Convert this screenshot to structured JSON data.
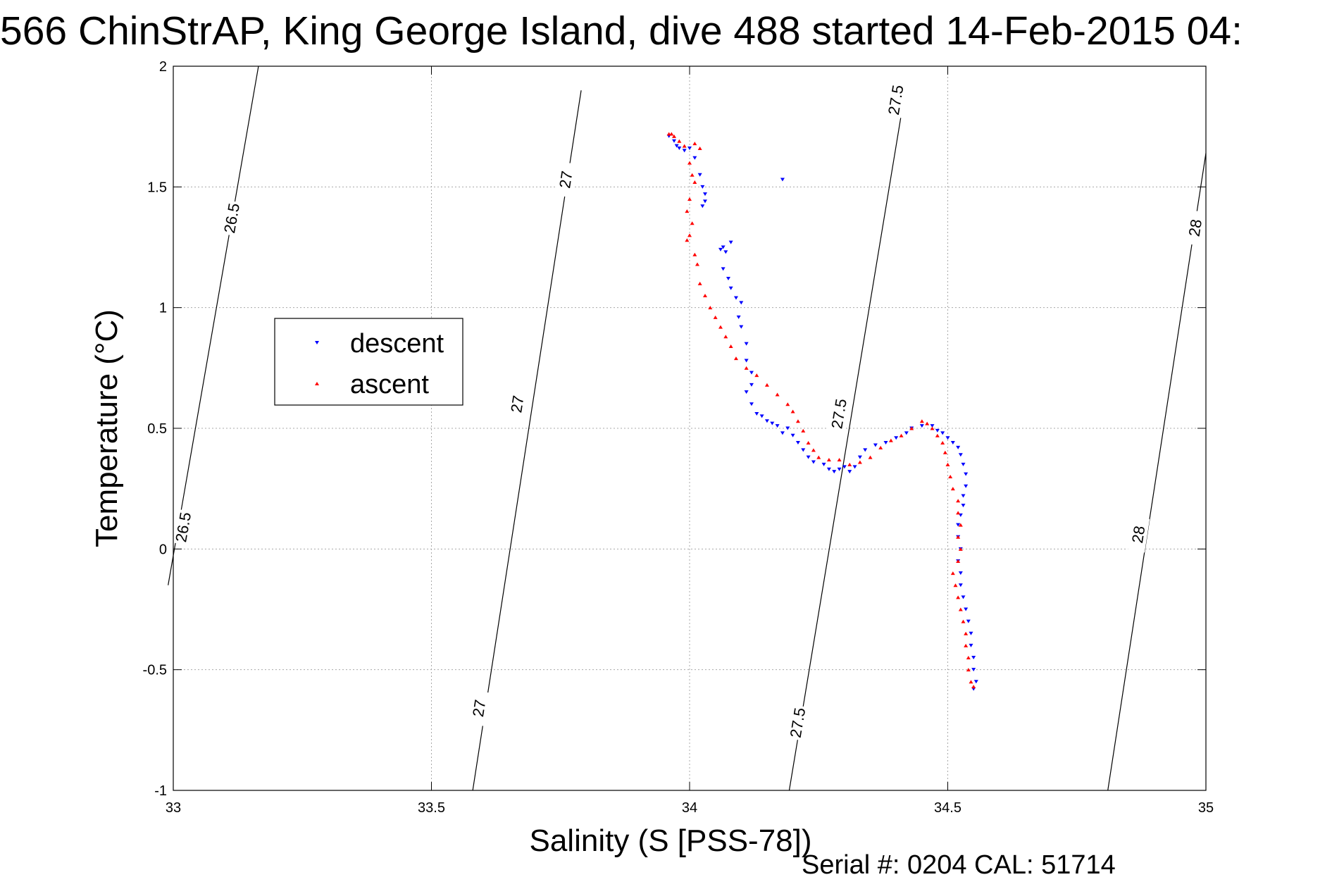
{
  "chart_data": {
    "type": "scatter",
    "title": "566 ChinStrAP, King George Island, dive 488 started 14-Feb-2015 04:",
    "xlabel": "Salinity (S [PSS-78])",
    "ylabel": "Temperature (°C)",
    "xlim": [
      33,
      35
    ],
    "ylim": [
      -1,
      2
    ],
    "xticks": [
      "33",
      "33.5",
      "34",
      "34.5",
      "35"
    ],
    "yticks": [
      "2",
      "1.5",
      "1",
      "0.5",
      "0",
      "-0.5",
      "-1"
    ],
    "grid": true,
    "legend": {
      "location": "upper-left",
      "entries": [
        "descent",
        "ascent"
      ]
    },
    "footer": "Serial #: 0204  CAL: 51714",
    "colors": {
      "descent": "#0000ff",
      "ascent": "#ff0000",
      "contour": "#000000",
      "grid": "#a8a8a8"
    },
    "density_contours": [
      {
        "label": "26.5",
        "line": [
          [
            32.99,
            -0.15
          ],
          [
            33.165,
            2.0
          ]
        ],
        "labels_at": [
          [
            33.114,
            1.37
          ],
          [
            33.02,
            0.09
          ]
        ]
      },
      {
        "label": "27",
        "line": [
          [
            33.58,
            -1.0
          ],
          [
            33.79,
            1.9
          ]
        ],
        "labels_at": [
          [
            33.761,
            1.53
          ],
          [
            33.667,
            0.6
          ],
          [
            33.593,
            -0.66
          ]
        ]
      },
      {
        "label": "27.5",
        "line": [
          [
            34.193,
            -1.0
          ],
          [
            34.41,
            1.8
          ]
        ],
        "labels_at": [
          [
            34.4,
            1.86
          ],
          [
            34.29,
            0.56
          ],
          [
            34.21,
            -0.72
          ]
        ]
      },
      {
        "label": "28",
        "line": [
          [
            34.81,
            -1.0
          ],
          [
            35.0,
            1.64
          ]
        ],
        "labels_at": [
          [
            34.98,
            1.33
          ],
          [
            34.87,
            0.06
          ]
        ]
      }
    ],
    "series": [
      {
        "name": "descent",
        "marker": "triangle-down",
        "points": [
          [
            33.96,
            1.71
          ],
          [
            33.97,
            1.69
          ],
          [
            33.975,
            1.67
          ],
          [
            33.98,
            1.66
          ],
          [
            33.99,
            1.65
          ],
          [
            34.0,
            1.66
          ],
          [
            34.01,
            1.62
          ],
          [
            34.02,
            1.55
          ],
          [
            34.025,
            1.5
          ],
          [
            34.03,
            1.47
          ],
          [
            34.03,
            1.44
          ],
          [
            34.025,
            1.42
          ],
          [
            34.06,
            1.24
          ],
          [
            34.065,
            1.25
          ],
          [
            34.07,
            1.23
          ],
          [
            34.08,
            1.27
          ],
          [
            34.065,
            1.16
          ],
          [
            34.075,
            1.12
          ],
          [
            34.08,
            1.08
          ],
          [
            34.09,
            1.04
          ],
          [
            34.1,
            1.02
          ],
          [
            34.095,
            0.96
          ],
          [
            34.1,
            0.92
          ],
          [
            34.11,
            0.85
          ],
          [
            34.11,
            0.78
          ],
          [
            34.12,
            0.73
          ],
          [
            34.12,
            0.68
          ],
          [
            34.11,
            0.65
          ],
          [
            34.12,
            0.6
          ],
          [
            34.13,
            0.56
          ],
          [
            34.14,
            0.55
          ],
          [
            34.15,
            0.53
          ],
          [
            34.16,
            0.52
          ],
          [
            34.17,
            0.51
          ],
          [
            34.18,
            0.48
          ],
          [
            34.19,
            0.5
          ],
          [
            34.2,
            0.47
          ],
          [
            34.21,
            0.44
          ],
          [
            34.22,
            0.41
          ],
          [
            34.23,
            0.38
          ],
          [
            34.24,
            0.36
          ],
          [
            34.26,
            0.35
          ],
          [
            34.27,
            0.33
          ],
          [
            34.28,
            0.32
          ],
          [
            34.29,
            0.33
          ],
          [
            34.3,
            0.34
          ],
          [
            34.31,
            0.32
          ],
          [
            34.32,
            0.34
          ],
          [
            34.33,
            0.38
          ],
          [
            34.34,
            0.41
          ],
          [
            34.36,
            0.43
          ],
          [
            34.38,
            0.44
          ],
          [
            34.4,
            0.46
          ],
          [
            34.42,
            0.48
          ],
          [
            34.43,
            0.5
          ],
          [
            34.45,
            0.51
          ],
          [
            34.47,
            0.51
          ],
          [
            34.48,
            0.49
          ],
          [
            34.49,
            0.48
          ],
          [
            34.5,
            0.46
          ],
          [
            34.51,
            0.44
          ],
          [
            34.52,
            0.42
          ],
          [
            34.525,
            0.39
          ],
          [
            34.53,
            0.35
          ],
          [
            34.535,
            0.31
          ],
          [
            34.535,
            0.26
          ],
          [
            34.53,
            0.22
          ],
          [
            34.53,
            0.18
          ],
          [
            34.525,
            0.14
          ],
          [
            34.52,
            0.1
          ],
          [
            34.52,
            0.05
          ],
          [
            34.525,
            0.0
          ],
          [
            34.52,
            -0.05
          ],
          [
            34.525,
            -0.1
          ],
          [
            34.525,
            -0.15
          ],
          [
            34.53,
            -0.2
          ],
          [
            34.535,
            -0.25
          ],
          [
            34.54,
            -0.3
          ],
          [
            34.545,
            -0.35
          ],
          [
            34.545,
            -0.4
          ],
          [
            34.55,
            -0.45
          ],
          [
            34.55,
            -0.5
          ],
          [
            34.555,
            -0.55
          ],
          [
            34.55,
            -0.58
          ],
          [
            34.18,
            1.53
          ]
        ]
      },
      {
        "name": "ascent",
        "marker": "triangle-up",
        "points": [
          [
            33.96,
            1.72
          ],
          [
            33.965,
            1.72
          ],
          [
            33.97,
            1.71
          ],
          [
            33.98,
            1.69
          ],
          [
            33.99,
            1.67
          ],
          [
            34.01,
            1.68
          ],
          [
            34.02,
            1.66
          ],
          [
            34.0,
            1.6
          ],
          [
            34.005,
            1.55
          ],
          [
            34.01,
            1.52
          ],
          [
            34.0,
            1.45
          ],
          [
            33.995,
            1.4
          ],
          [
            34.005,
            1.35
          ],
          [
            34.0,
            1.3
          ],
          [
            33.995,
            1.28
          ],
          [
            34.01,
            1.22
          ],
          [
            34.015,
            1.18
          ],
          [
            34.02,
            1.1
          ],
          [
            34.03,
            1.05
          ],
          [
            34.04,
            1.0
          ],
          [
            34.05,
            0.96
          ],
          [
            34.06,
            0.92
          ],
          [
            34.07,
            0.88
          ],
          [
            34.08,
            0.84
          ],
          [
            34.09,
            0.79
          ],
          [
            34.11,
            0.75
          ],
          [
            34.13,
            0.72
          ],
          [
            34.15,
            0.68
          ],
          [
            34.17,
            0.64
          ],
          [
            34.19,
            0.6
          ],
          [
            34.2,
            0.57
          ],
          [
            34.21,
            0.53
          ],
          [
            34.22,
            0.49
          ],
          [
            34.23,
            0.44
          ],
          [
            34.24,
            0.41
          ],
          [
            34.25,
            0.38
          ],
          [
            34.27,
            0.37
          ],
          [
            34.29,
            0.37
          ],
          [
            34.31,
            0.35
          ],
          [
            34.33,
            0.36
          ],
          [
            34.35,
            0.38
          ],
          [
            34.37,
            0.42
          ],
          [
            34.39,
            0.45
          ],
          [
            34.41,
            0.47
          ],
          [
            34.43,
            0.5
          ],
          [
            34.45,
            0.53
          ],
          [
            34.46,
            0.52
          ],
          [
            34.47,
            0.5
          ],
          [
            34.48,
            0.47
          ],
          [
            34.49,
            0.44
          ],
          [
            34.495,
            0.4
          ],
          [
            34.5,
            0.35
          ],
          [
            34.505,
            0.3
          ],
          [
            34.51,
            0.25
          ],
          [
            34.52,
            0.2
          ],
          [
            34.52,
            0.15
          ],
          [
            34.525,
            0.1
          ],
          [
            34.52,
            0.05
          ],
          [
            34.525,
            0.0
          ],
          [
            34.52,
            -0.05
          ],
          [
            34.51,
            -0.1
          ],
          [
            34.515,
            -0.15
          ],
          [
            34.52,
            -0.2
          ],
          [
            34.525,
            -0.25
          ],
          [
            34.53,
            -0.3
          ],
          [
            34.535,
            -0.35
          ],
          [
            34.535,
            -0.4
          ],
          [
            34.54,
            -0.45
          ],
          [
            34.54,
            -0.5
          ],
          [
            34.545,
            -0.55
          ],
          [
            34.55,
            -0.57
          ]
        ]
      }
    ]
  }
}
